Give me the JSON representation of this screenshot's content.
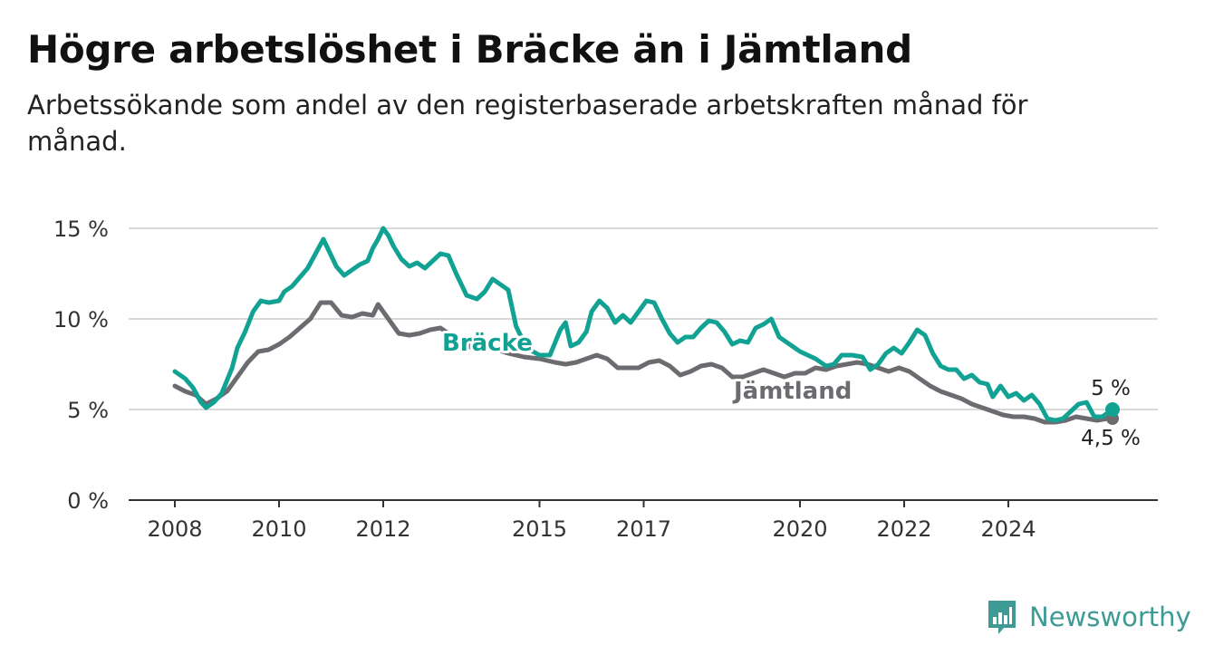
{
  "header": {
    "title": "Högre arbetslöshet i Bräcke än i Jämtland",
    "subtitle": "Arbetssökande som andel av den registerbaserade arbetskraften månad för månad."
  },
  "brand": {
    "name": "Newsworthy",
    "color": "#3d9a95"
  },
  "colors": {
    "bracke": "#12a294",
    "jamtland": "#6b6b70",
    "grid": "#d9d9d9",
    "axis": "#333333"
  },
  "chart_data": {
    "type": "line",
    "title": "Högre arbetslöshet i Bräcke än i Jämtland",
    "subtitle": "Arbetssökande som andel av den registerbaserade arbetskraften månad för månad.",
    "ylim": [
      0,
      15
    ],
    "yticks": [
      0,
      5,
      10,
      15
    ],
    "ytick_labels": [
      "0 %",
      "5 %",
      "10 %",
      "15 %"
    ],
    "xlim": [
      2008,
      2025.8
    ],
    "xticks": [
      2008,
      2010,
      2012,
      2015,
      2017,
      2020,
      2022,
      2024
    ],
    "xtick_labels": [
      "2008",
      "2010",
      "2012",
      "2015",
      "2017",
      "2020",
      "2022",
      "2024"
    ],
    "grid": true,
    "series": [
      {
        "name": "Bräcke",
        "color": "#12a294",
        "end_label": "5 %",
        "points": [
          [
            2008.0,
            7.1
          ],
          [
            2008.2,
            6.7
          ],
          [
            2008.35,
            6.2
          ],
          [
            2008.5,
            5.4
          ],
          [
            2008.6,
            5.1
          ],
          [
            2008.75,
            5.4
          ],
          [
            2008.9,
            5.9
          ],
          [
            2009.0,
            6.6
          ],
          [
            2009.1,
            7.3
          ],
          [
            2009.2,
            8.4
          ],
          [
            2009.35,
            9.3
          ],
          [
            2009.5,
            10.4
          ],
          [
            2009.65,
            11.0
          ],
          [
            2009.8,
            10.9
          ],
          [
            2010.0,
            11.0
          ],
          [
            2010.1,
            11.5
          ],
          [
            2010.25,
            11.8
          ],
          [
            2010.4,
            12.3
          ],
          [
            2010.55,
            12.8
          ],
          [
            2010.7,
            13.6
          ],
          [
            2010.85,
            14.4
          ],
          [
            2011.0,
            13.5
          ],
          [
            2011.1,
            12.9
          ],
          [
            2011.25,
            12.4
          ],
          [
            2011.4,
            12.7
          ],
          [
            2011.55,
            13.0
          ],
          [
            2011.7,
            13.2
          ],
          [
            2011.8,
            13.9
          ],
          [
            2011.9,
            14.4
          ],
          [
            2012.0,
            15.0
          ],
          [
            2012.1,
            14.6
          ],
          [
            2012.2,
            14.0
          ],
          [
            2012.35,
            13.3
          ],
          [
            2012.5,
            12.9
          ],
          [
            2012.65,
            13.1
          ],
          [
            2012.8,
            12.8
          ],
          [
            2012.95,
            13.2
          ],
          [
            2013.1,
            13.6
          ],
          [
            2013.25,
            13.5
          ],
          [
            2013.4,
            12.5
          ],
          [
            2013.6,
            11.3
          ],
          [
            2013.8,
            11.1
          ],
          [
            2013.95,
            11.5
          ],
          [
            2014.1,
            12.2
          ],
          [
            2014.25,
            11.9
          ],
          [
            2014.4,
            11.6
          ],
          [
            2014.55,
            9.6
          ],
          [
            2014.75,
            8.4
          ],
          [
            2015.0,
            8.0
          ],
          [
            2015.2,
            8.0
          ],
          [
            2015.4,
            9.4
          ],
          [
            2015.5,
            9.8
          ],
          [
            2015.6,
            8.5
          ],
          [
            2015.75,
            8.7
          ],
          [
            2015.9,
            9.3
          ],
          [
            2016.0,
            10.4
          ],
          [
            2016.15,
            11.0
          ],
          [
            2016.3,
            10.6
          ],
          [
            2016.45,
            9.8
          ],
          [
            2016.6,
            10.2
          ],
          [
            2016.75,
            9.8
          ],
          [
            2016.9,
            10.4
          ],
          [
            2017.05,
            11.0
          ],
          [
            2017.2,
            10.9
          ],
          [
            2017.35,
            10.0
          ],
          [
            2017.5,
            9.2
          ],
          [
            2017.65,
            8.7
          ],
          [
            2017.8,
            9.0
          ],
          [
            2017.95,
            9.0
          ],
          [
            2018.1,
            9.5
          ],
          [
            2018.25,
            9.9
          ],
          [
            2018.4,
            9.8
          ],
          [
            2018.55,
            9.3
          ],
          [
            2018.7,
            8.6
          ],
          [
            2018.85,
            8.8
          ],
          [
            2019.0,
            8.7
          ],
          [
            2019.15,
            9.5
          ],
          [
            2019.3,
            9.7
          ],
          [
            2019.45,
            10.0
          ],
          [
            2019.6,
            9.0
          ],
          [
            2019.8,
            8.6
          ],
          [
            2020.0,
            8.2
          ],
          [
            2020.15,
            8.0
          ],
          [
            2020.3,
            7.8
          ],
          [
            2020.5,
            7.4
          ],
          [
            2020.65,
            7.5
          ],
          [
            2020.8,
            8.0
          ],
          [
            2021.0,
            8.0
          ],
          [
            2021.2,
            7.9
          ],
          [
            2021.35,
            7.2
          ],
          [
            2021.5,
            7.5
          ],
          [
            2021.65,
            8.1
          ],
          [
            2021.8,
            8.4
          ],
          [
            2021.95,
            8.1
          ],
          [
            2022.1,
            8.7
          ],
          [
            2022.25,
            9.4
          ],
          [
            2022.4,
            9.1
          ],
          [
            2022.55,
            8.1
          ],
          [
            2022.7,
            7.4
          ],
          [
            2022.85,
            7.2
          ],
          [
            2023.0,
            7.2
          ],
          [
            2023.15,
            6.7
          ],
          [
            2023.3,
            6.9
          ],
          [
            2023.45,
            6.5
          ],
          [
            2023.6,
            6.4
          ],
          [
            2023.7,
            5.7
          ],
          [
            2023.85,
            6.3
          ],
          [
            2024.0,
            5.7
          ],
          [
            2024.15,
            5.9
          ],
          [
            2024.3,
            5.5
          ],
          [
            2024.45,
            5.8
          ],
          [
            2024.6,
            5.3
          ],
          [
            2024.75,
            4.5
          ],
          [
            2024.9,
            4.4
          ],
          [
            2025.05,
            4.5
          ],
          [
            2025.2,
            4.9
          ],
          [
            2025.35,
            5.3
          ],
          [
            2025.5,
            5.4
          ],
          [
            2025.65,
            4.6
          ],
          [
            2025.8,
            4.6
          ],
          [
            2025.9,
            4.8
          ],
          [
            2026.0,
            5.0
          ]
        ]
      },
      {
        "name": "Jämtland",
        "color": "#6b6b70",
        "end_label": "4,5 %",
        "points": [
          [
            2008.0,
            6.3
          ],
          [
            2008.2,
            6.0
          ],
          [
            2008.4,
            5.8
          ],
          [
            2008.6,
            5.3
          ],
          [
            2008.8,
            5.6
          ],
          [
            2009.0,
            6.0
          ],
          [
            2009.2,
            6.8
          ],
          [
            2009.4,
            7.6
          ],
          [
            2009.6,
            8.2
          ],
          [
            2009.8,
            8.3
          ],
          [
            2010.0,
            8.6
          ],
          [
            2010.2,
            9.0
          ],
          [
            2010.4,
            9.5
          ],
          [
            2010.6,
            10.0
          ],
          [
            2010.8,
            10.9
          ],
          [
            2011.0,
            10.9
          ],
          [
            2011.2,
            10.2
          ],
          [
            2011.4,
            10.1
          ],
          [
            2011.6,
            10.3
          ],
          [
            2011.8,
            10.2
          ],
          [
            2011.9,
            10.8
          ],
          [
            2012.1,
            10.0
          ],
          [
            2012.3,
            9.2
          ],
          [
            2012.5,
            9.1
          ],
          [
            2012.7,
            9.2
          ],
          [
            2012.9,
            9.4
          ],
          [
            2013.1,
            9.5
          ],
          [
            2013.3,
            9.1
          ],
          [
            2013.5,
            8.9
          ],
          [
            2013.7,
            8.4
          ],
          [
            2013.9,
            8.5
          ],
          [
            2014.1,
            8.4
          ],
          [
            2014.4,
            8.1
          ],
          [
            2014.7,
            7.9
          ],
          [
            2015.0,
            7.8
          ],
          [
            2015.3,
            7.6
          ],
          [
            2015.5,
            7.5
          ],
          [
            2015.7,
            7.6
          ],
          [
            2015.9,
            7.8
          ],
          [
            2016.1,
            8.0
          ],
          [
            2016.3,
            7.8
          ],
          [
            2016.5,
            7.3
          ],
          [
            2016.7,
            7.3
          ],
          [
            2016.9,
            7.3
          ],
          [
            2017.1,
            7.6
          ],
          [
            2017.3,
            7.7
          ],
          [
            2017.5,
            7.4
          ],
          [
            2017.7,
            6.9
          ],
          [
            2017.9,
            7.1
          ],
          [
            2018.1,
            7.4
          ],
          [
            2018.3,
            7.5
          ],
          [
            2018.5,
            7.3
          ],
          [
            2018.7,
            6.8
          ],
          [
            2018.9,
            6.8
          ],
          [
            2019.1,
            7.0
          ],
          [
            2019.3,
            7.2
          ],
          [
            2019.5,
            7.0
          ],
          [
            2019.7,
            6.8
          ],
          [
            2019.9,
            7.0
          ],
          [
            2020.1,
            7.0
          ],
          [
            2020.3,
            7.3
          ],
          [
            2020.5,
            7.2
          ],
          [
            2020.7,
            7.4
          ],
          [
            2020.9,
            7.5
          ],
          [
            2021.1,
            7.6
          ],
          [
            2021.3,
            7.5
          ],
          [
            2021.5,
            7.3
          ],
          [
            2021.7,
            7.1
          ],
          [
            2021.9,
            7.3
          ],
          [
            2022.1,
            7.1
          ],
          [
            2022.3,
            6.7
          ],
          [
            2022.5,
            6.3
          ],
          [
            2022.7,
            6.0
          ],
          [
            2022.9,
            5.8
          ],
          [
            2023.1,
            5.6
          ],
          [
            2023.3,
            5.3
          ],
          [
            2023.5,
            5.1
          ],
          [
            2023.7,
            4.9
          ],
          [
            2023.9,
            4.7
          ],
          [
            2024.1,
            4.6
          ],
          [
            2024.3,
            4.6
          ],
          [
            2024.5,
            4.5
          ],
          [
            2024.7,
            4.3
          ],
          [
            2024.9,
            4.3
          ],
          [
            2025.1,
            4.4
          ],
          [
            2025.3,
            4.6
          ],
          [
            2025.5,
            4.5
          ],
          [
            2025.7,
            4.4
          ],
          [
            2025.9,
            4.5
          ],
          [
            2026.0,
            4.5
          ]
        ]
      }
    ]
  }
}
